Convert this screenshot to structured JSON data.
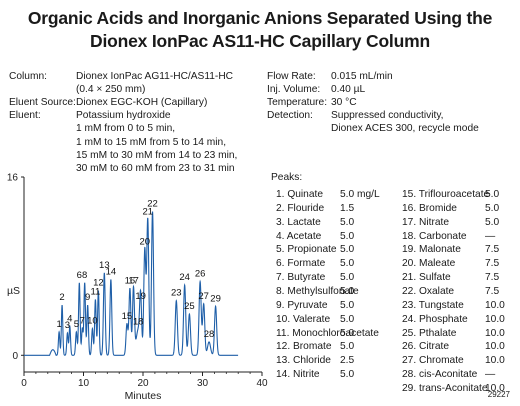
{
  "title": {
    "line1": "Organic Acids and Inorganic Anions Separated Using the",
    "line2": "Dionex IonPac AS11-HC Capillary Column"
  },
  "conditions_left": [
    {
      "label": "Column:",
      "lines": [
        "Dionex IonPac AG11-HC/AS11-HC",
        "(0.4 × 250 mm)"
      ]
    },
    {
      "label": "Eluent Source:",
      "lines": [
        "Dionex EGC-KOH (Capillary)"
      ]
    },
    {
      "label": "Eluent:",
      "lines": [
        "Potassium hydroxide",
        "1 mM from 0 to 5 min,",
        "1 mM to 15 mM from 5 to 14 min,",
        "15 mM to 30 mM from 14 to 23 min,",
        "30 mM to 60 mM from 23 to 31 min"
      ]
    }
  ],
  "conditions_right": [
    {
      "label": "Flow Rate:",
      "lines": [
        "0.015 mL/min"
      ]
    },
    {
      "label": "Inj. Volume:",
      "lines": [
        "0.40 µL"
      ]
    },
    {
      "label": "Temperature:",
      "lines": [
        "30 °C"
      ]
    },
    {
      "label": "Detection:",
      "lines": [
        "Suppressed conductivity,",
        "Dionex ACES 300, recycle mode"
      ]
    }
  ],
  "peaks_header": "Peaks:",
  "peaks_col1": [
    {
      "name": "1. Quinate",
      "conc": "5.0 mg/L"
    },
    {
      "name": "2. Flouride",
      "conc": "1.5"
    },
    {
      "name": "3. Lactate",
      "conc": "5.0"
    },
    {
      "name": "4. Acetate",
      "conc": "5.0"
    },
    {
      "name": "5. Propionate",
      "conc": "5.0"
    },
    {
      "name": "6. Formate",
      "conc": "5.0"
    },
    {
      "name": "7. Butyrate",
      "conc": "5.0"
    },
    {
      "name": "8. Methylsulfonate",
      "conc": "5.0"
    },
    {
      "name": "9. Pyruvate",
      "conc": "5.0"
    },
    {
      "name": "10. Valerate",
      "conc": "5.0"
    },
    {
      "name": "11. Monochloroacetate",
      "conc": "5.0"
    },
    {
      "name": "12. Bromate",
      "conc": "5.0"
    },
    {
      "name": "13. Chloride",
      "conc": "2.5"
    },
    {
      "name": "14. Nitrite",
      "conc": "5.0"
    }
  ],
  "peaks_col2": [
    {
      "name": "15. Triflouroacetate",
      "conc": "5.0"
    },
    {
      "name": "16. Bromide",
      "conc": "5.0"
    },
    {
      "name": "17. Nitrate",
      "conc": "5.0"
    },
    {
      "name": "18. Carbonate",
      "conc": "—"
    },
    {
      "name": "19. Malonate",
      "conc": "7.5"
    },
    {
      "name": "20. Maleate",
      "conc": "7.5"
    },
    {
      "name": "21. Sulfate",
      "conc": "7.5"
    },
    {
      "name": "22. Oxalate",
      "conc": "7.5"
    },
    {
      "name": "23. Tungstate",
      "conc": "10.0"
    },
    {
      "name": "24. Phosphate",
      "conc": "10.0"
    },
    {
      "name": "25. Pthalate",
      "conc": "10.0"
    },
    {
      "name": "26. Citrate",
      "conc": "10.0"
    },
    {
      "name": "27. Chromate",
      "conc": "10.0"
    },
    {
      "name": "28. cis-Aconitate",
      "conc": "—"
    },
    {
      "name": "29. trans-Aconitate",
      "conc": "10.0"
    }
  ],
  "figure_id": "29227",
  "chart_data": {
    "type": "line",
    "xlabel": "Minutes",
    "ylabel": "µS",
    "xlim": [
      0,
      40
    ],
    "ylim": [
      -1.5,
      16
    ],
    "x_ticks": [
      0,
      10,
      20,
      30,
      40
    ],
    "y_ticks": [
      0,
      16
    ],
    "baseline": 0,
    "line_color": "#1f5fa8",
    "peaks": [
      {
        "label": "1",
        "rt": 5.9,
        "height": 2.1,
        "width": 0.12
      },
      {
        "label": "2",
        "rt": 6.4,
        "height": 4.5,
        "width": 0.12
      },
      {
        "label": "3",
        "rt": 7.3,
        "height": 2.0,
        "width": 0.12
      },
      {
        "label": "4",
        "rt": 7.7,
        "height": 2.6,
        "width": 0.12
      },
      {
        "label": "5",
        "rt": 8.8,
        "height": 2.1,
        "width": 0.13
      },
      {
        "label": "6",
        "rt": 9.3,
        "height": 6.5,
        "width": 0.13
      },
      {
        "label": "7",
        "rt": 9.8,
        "height": 2.4,
        "width": 0.12
      },
      {
        "label": "8",
        "rt": 10.2,
        "height": 6.5,
        "width": 0.13
      },
      {
        "label": "9",
        "rt": 10.7,
        "height": 4.5,
        "width": 0.13
      },
      {
        "label": "10",
        "rt": 11.5,
        "height": 2.4,
        "width": 0.13
      },
      {
        "label": "11",
        "rt": 12.0,
        "height": 5.0,
        "width": 0.13
      },
      {
        "label": "12",
        "rt": 12.5,
        "height": 5.8,
        "width": 0.13
      },
      {
        "label": "13",
        "rt": 13.5,
        "height": 7.4,
        "width": 0.15
      },
      {
        "label": "14",
        "rt": 14.6,
        "height": 6.8,
        "width": 0.15
      },
      {
        "label": "15",
        "rt": 17.3,
        "height": 2.8,
        "width": 0.16
      },
      {
        "label": "16",
        "rt": 17.8,
        "height": 6.0,
        "width": 0.16
      },
      {
        "label": "17",
        "rt": 18.4,
        "height": 6.0,
        "width": 0.16
      },
      {
        "label": "18",
        "rt": 19.2,
        "height": 2.3,
        "width": 0.35
      },
      {
        "label": "19",
        "rt": 19.6,
        "height": 4.6,
        "width": 0.16
      },
      {
        "label": "20",
        "rt": 20.3,
        "height": 9.5,
        "width": 0.17
      },
      {
        "label": "21",
        "rt": 20.8,
        "height": 12.2,
        "width": 0.17
      },
      {
        "label": "22",
        "rt": 21.6,
        "height": 12.9,
        "width": 0.17
      },
      {
        "label": "23",
        "rt": 25.6,
        "height": 4.9,
        "width": 0.18
      },
      {
        "label": "24",
        "rt": 27.0,
        "height": 6.3,
        "width": 0.18
      },
      {
        "label": "25",
        "rt": 27.8,
        "height": 3.7,
        "width": 0.18
      },
      {
        "label": "26",
        "rt": 29.6,
        "height": 6.6,
        "width": 0.18
      },
      {
        "label": "27",
        "rt": 30.2,
        "height": 4.6,
        "width": 0.18
      },
      {
        "label": "28",
        "rt": 31.1,
        "height": 1.2,
        "width": 0.25
      },
      {
        "label": "29",
        "rt": 32.2,
        "height": 4.4,
        "width": 0.18
      }
    ]
  }
}
